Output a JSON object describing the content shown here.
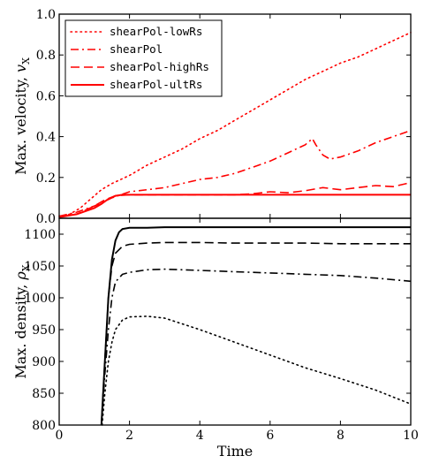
{
  "chart_data": [
    {
      "type": "line",
      "xlabel": "",
      "ylabel": "Max. velocity, v_X",
      "ylabel_main": "Max. velocity, ",
      "ylabel_sym": "v",
      "ylabel_sub": "X",
      "xlim": [
        0,
        10
      ],
      "ylim": [
        0,
        1.0
      ],
      "xticks": [
        0,
        2,
        4,
        6,
        8,
        10
      ],
      "yticks": [
        0.0,
        0.2,
        0.4,
        0.6,
        0.8,
        1.0
      ],
      "ytick_labels": [
        "0.0",
        "0.2",
        "0.4",
        "0.6",
        "0.8",
        "1.0"
      ],
      "grid": false,
      "legend_position": "top-left",
      "color": "#ff0000",
      "series": [
        {
          "name": "shearPol-lowRs",
          "style": "dotted",
          "x": [
            0,
            0.3,
            0.6,
            0.8,
            1.0,
            1.2,
            1.5,
            2.0,
            2.5,
            3.0,
            3.5,
            4.0,
            4.5,
            5.0,
            5.5,
            6.0,
            6.5,
            7.0,
            7.5,
            8.0,
            8.5,
            9.0,
            9.5,
            10.0
          ],
          "y": [
            0.01,
            0.02,
            0.05,
            0.08,
            0.11,
            0.14,
            0.17,
            0.21,
            0.26,
            0.3,
            0.34,
            0.39,
            0.43,
            0.48,
            0.53,
            0.58,
            0.63,
            0.68,
            0.72,
            0.76,
            0.79,
            0.83,
            0.87,
            0.91
          ]
        },
        {
          "name": "shearPol",
          "style": "dashdot",
          "x": [
            0,
            0.5,
            1.0,
            1.5,
            2.0,
            2.5,
            3.0,
            3.5,
            4.0,
            4.5,
            5.0,
            5.5,
            6.0,
            6.5,
            7.0,
            7.2,
            7.3,
            7.5,
            7.7,
            8.0,
            8.5,
            9.0,
            9.5,
            10.0
          ],
          "y": [
            0.01,
            0.03,
            0.06,
            0.1,
            0.13,
            0.14,
            0.15,
            0.17,
            0.19,
            0.2,
            0.22,
            0.25,
            0.28,
            0.32,
            0.36,
            0.39,
            0.36,
            0.31,
            0.29,
            0.3,
            0.33,
            0.37,
            0.4,
            0.43
          ]
        },
        {
          "name": "shearPol-highRs",
          "style": "dashed",
          "x": [
            0,
            0.5,
            1.0,
            1.3,
            1.6,
            2.0,
            3.0,
            4.0,
            5.0,
            5.5,
            6.0,
            6.5,
            7.0,
            7.5,
            8.0,
            8.5,
            9.0,
            9.5,
            10.0
          ],
          "y": [
            0.01,
            0.02,
            0.06,
            0.09,
            0.11,
            0.115,
            0.115,
            0.115,
            0.115,
            0.12,
            0.13,
            0.125,
            0.135,
            0.15,
            0.14,
            0.15,
            0.16,
            0.155,
            0.175
          ]
        },
        {
          "name": "shearPol-ultRs",
          "style": "solid",
          "x": [
            0,
            0.5,
            1.0,
            1.2,
            1.4,
            1.6,
            1.8,
            2.0,
            3.0,
            4.0,
            5.0,
            6.0,
            7.0,
            8.0,
            9.0,
            10.0
          ],
          "y": [
            0.005,
            0.02,
            0.05,
            0.07,
            0.095,
            0.11,
            0.115,
            0.115,
            0.115,
            0.115,
            0.115,
            0.115,
            0.115,
            0.115,
            0.115,
            0.115
          ]
        }
      ]
    },
    {
      "type": "line",
      "xlabel": "Time",
      "ylabel": "Max. density, ρ_X",
      "ylabel_main": "Max. density, ",
      "ylabel_sym": "ρ",
      "ylabel_sub": "X",
      "xlim": [
        0,
        10
      ],
      "ylim": [
        800,
        1125
      ],
      "xticks": [
        0,
        2,
        4,
        6,
        8,
        10
      ],
      "xtick_labels": [
        "0",
        "2",
        "4",
        "6",
        "8",
        "10"
      ],
      "yticks": [
        800,
        850,
        900,
        950,
        1000,
        1050,
        1100
      ],
      "ytick_labels": [
        "800",
        "850",
        "900",
        "950",
        "1000",
        "1050",
        "1100"
      ],
      "grid": false,
      "color": "#000000",
      "series": [
        {
          "style": "dotted",
          "x": [
            1.22,
            1.3,
            1.4,
            1.5,
            1.6,
            1.8,
            2.0,
            2.5,
            3.0,
            4.0,
            5.0,
            6.0,
            7.0,
            8.0,
            9.0,
            10.0
          ],
          "y": [
            800,
            850,
            900,
            930,
            950,
            965,
            970,
            971,
            968,
            950,
            930,
            910,
            890,
            873,
            855,
            833
          ]
        },
        {
          "style": "dashdot",
          "x": [
            1.2,
            1.3,
            1.4,
            1.5,
            1.6,
            1.8,
            2.0,
            2.5,
            3.0,
            4.0,
            5.0,
            6.0,
            7.0,
            8.0,
            9.0,
            10.0
          ],
          "y": [
            800,
            880,
            950,
            1000,
            1025,
            1037,
            1040,
            1044,
            1045,
            1043,
            1041,
            1039,
            1037,
            1035,
            1031,
            1026
          ]
        },
        {
          "style": "dashed",
          "x": [
            1.2,
            1.3,
            1.4,
            1.5,
            1.6,
            1.8,
            2.0,
            2.5,
            3.0,
            4.0,
            5.0,
            6.0,
            7.0,
            8.0,
            9.0,
            10.0
          ],
          "y": [
            800,
            900,
            1000,
            1050,
            1070,
            1081,
            1084,
            1086,
            1087,
            1087,
            1086,
            1086,
            1086,
            1085,
            1085,
            1085
          ]
        },
        {
          "style": "solid",
          "x": [
            1.2,
            1.3,
            1.4,
            1.5,
            1.6,
            1.7,
            1.8,
            2.0,
            2.5,
            3.0,
            4.0,
            5.0,
            6.0,
            7.0,
            8.0,
            9.0,
            10.0
          ],
          "y": [
            800,
            900,
            1000,
            1060,
            1090,
            1103,
            1108,
            1110,
            1110,
            1111,
            1111,
            1111,
            1111,
            1111,
            1111,
            1111,
            1111
          ]
        }
      ]
    }
  ]
}
